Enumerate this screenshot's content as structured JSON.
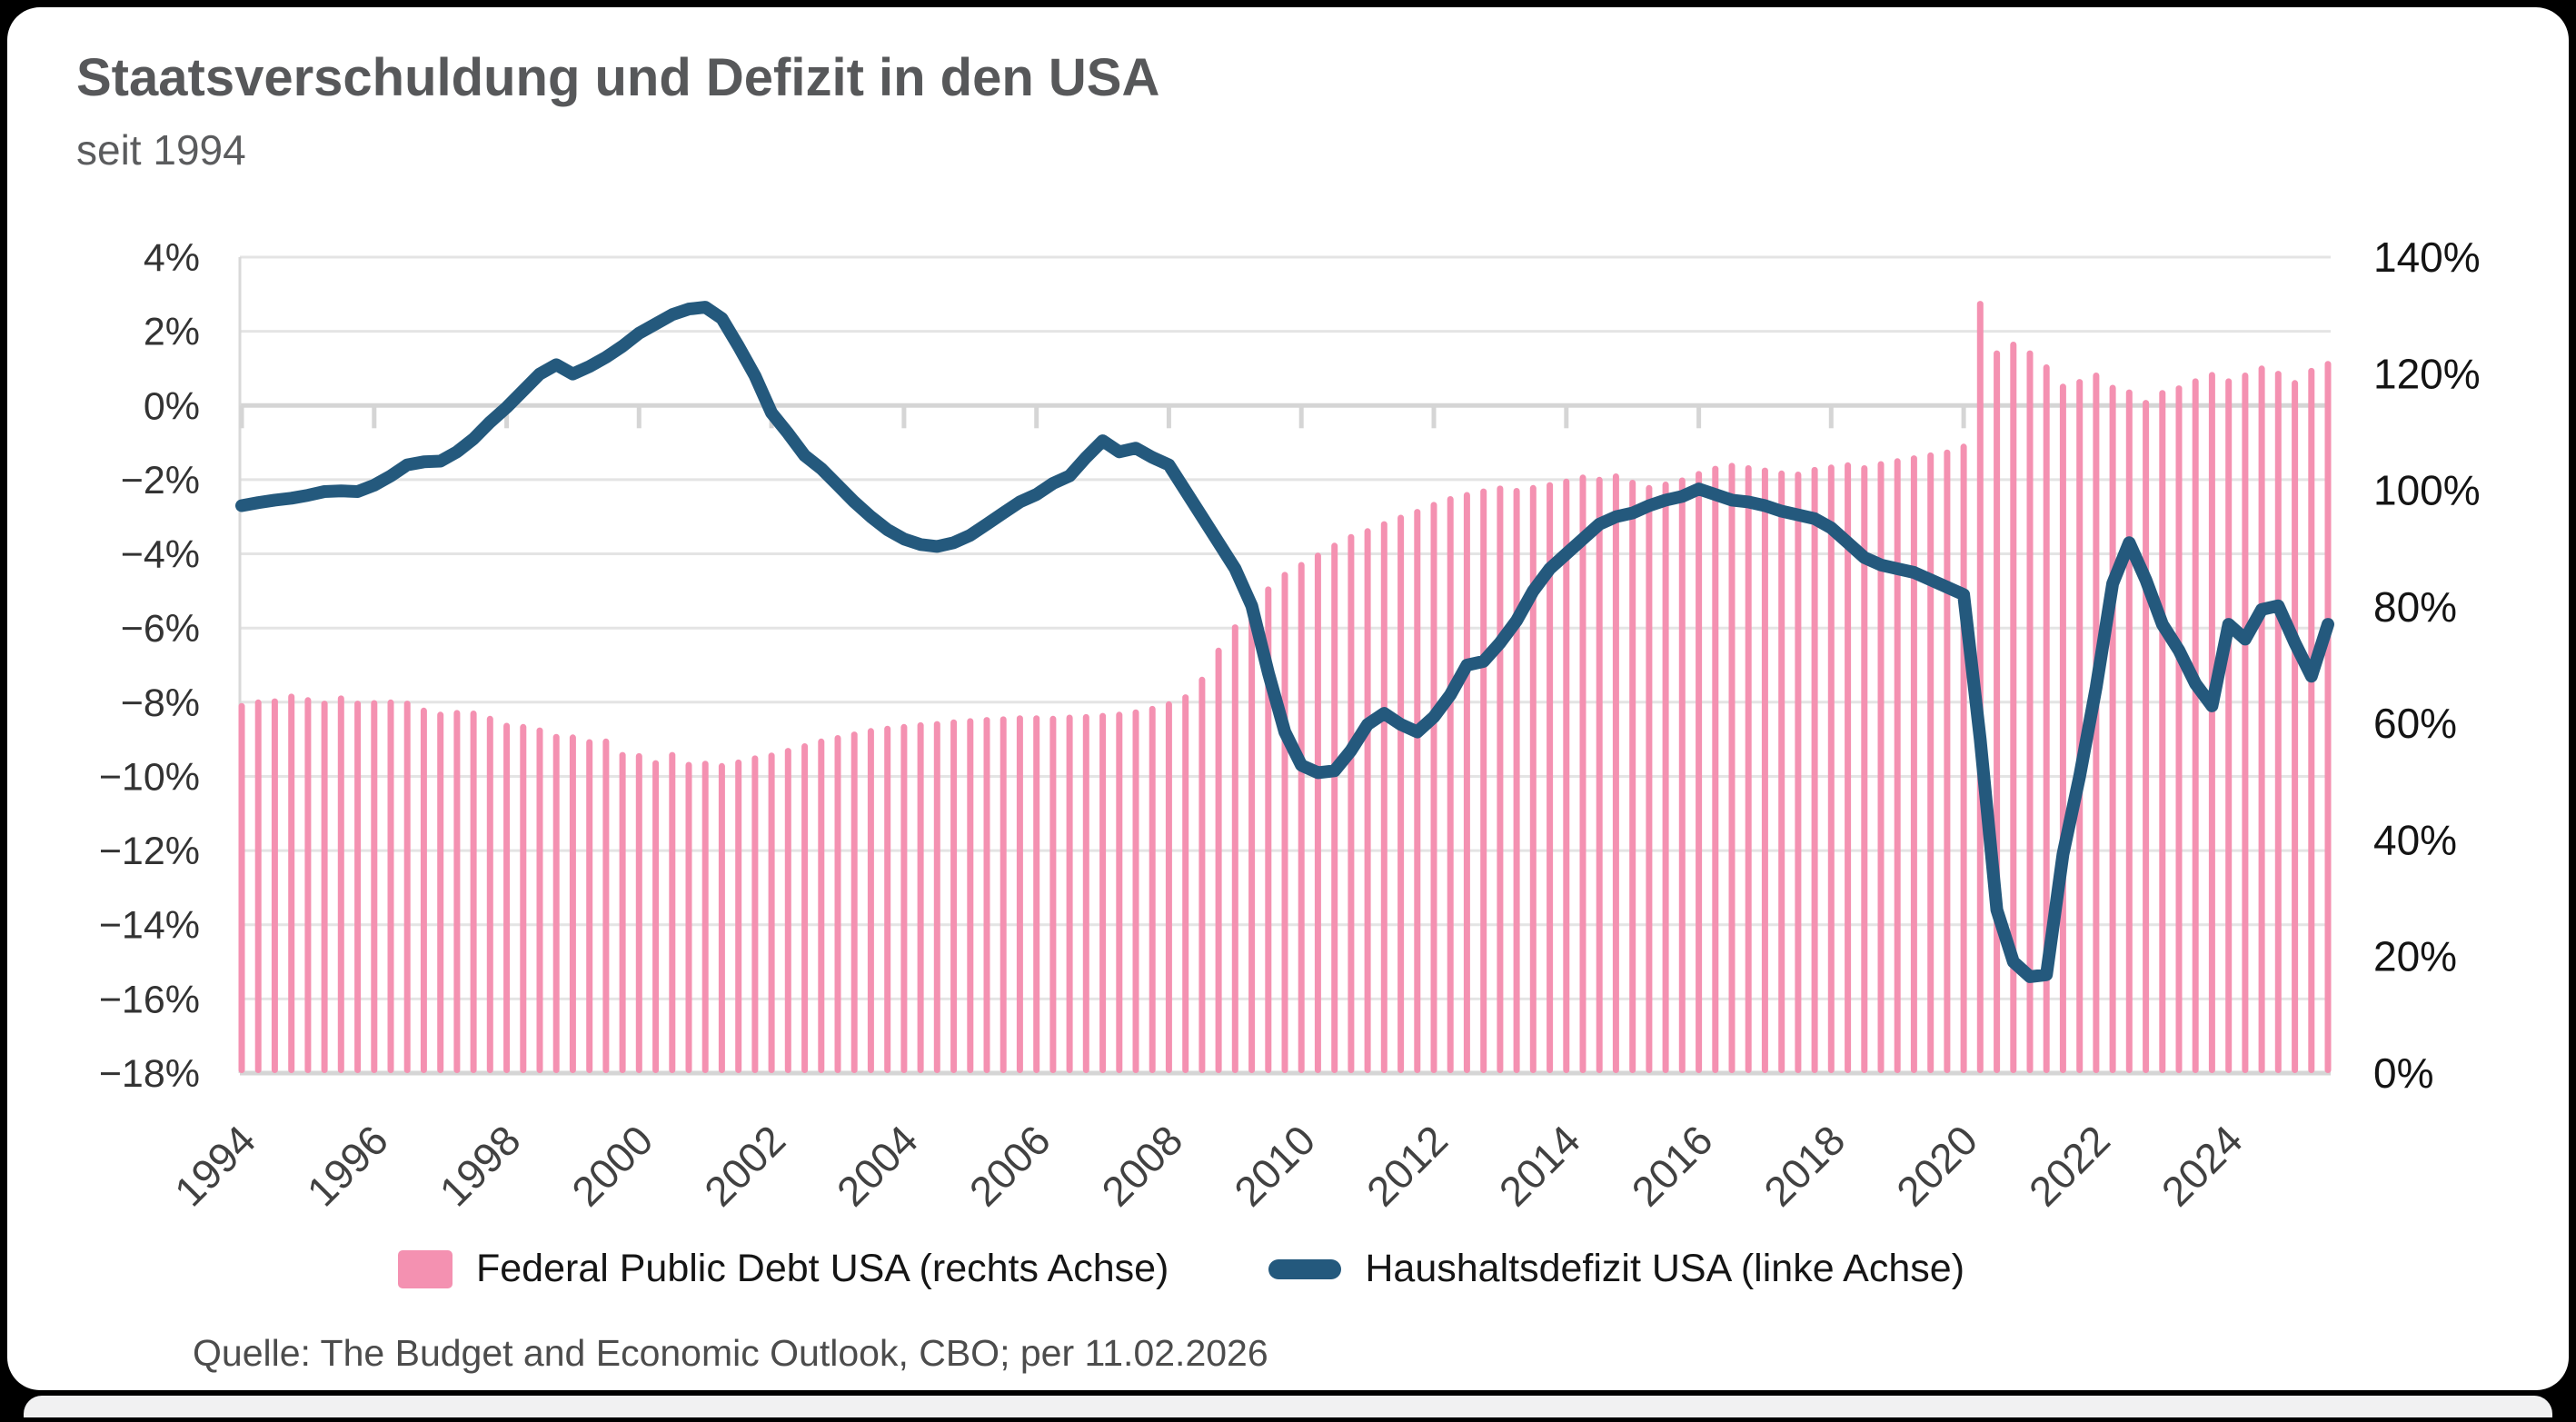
{
  "header": {
    "title": "Staatsverschuldung und Defizit in den USA",
    "subtitle": "seit 1994"
  },
  "legend": {
    "debt_label": "Federal Public Debt USA (rechts Achse)",
    "deficit_label": "Haushaltsdefizit USA (linke Achse)"
  },
  "source_note": "Quelle: The Budget and Economic Outlook, CBO; per 11.02.2026",
  "colors": {
    "bar_pink": "#f491b1",
    "line_blue": "#24597d",
    "grid": "#e4e4e4",
    "grid_strong": "#d5d5d5",
    "axis_text_left": "#333333",
    "axis_text_right": "#141414",
    "x_label": "#414141"
  },
  "chart_data": {
    "type": "combo-bar-line",
    "x_period_start": "1994 Q1",
    "x_period_end": "2025 Q3",
    "x_tick_labels": [
      "1994",
      "1996",
      "1998",
      "2000",
      "2002",
      "2004",
      "2006",
      "2008",
      "2010",
      "2012",
      "2014",
      "2016",
      "2018",
      "2020",
      "2022",
      "2024"
    ],
    "left_axis": {
      "label": "Haushaltsdefizit USA (linke Achse)",
      "ylim": [
        -18,
        4
      ],
      "tick_labels": [
        "4%",
        "2%",
        "0%",
        "−2%",
        "−4%",
        "−6%",
        "−8%",
        "−10%",
        "−12%",
        "−14%",
        "−16%",
        "−18%"
      ]
    },
    "right_axis": {
      "label": "Federal Public Debt USA (rechts Achse)",
      "ylim": [
        0,
        140
      ],
      "tick_labels": [
        "140%",
        "120%",
        "100%",
        "80%",
        "60%",
        "40%",
        "20%",
        "0%"
      ]
    },
    "grid": true,
    "legend_position": "bottom-center",
    "series": [
      {
        "name": "Federal Public Debt USA (rechts Achse)",
        "type": "bar",
        "axis": "right",
        "values": [
          63.5,
          64.1,
          64.3,
          65.1,
          64.5,
          63.9,
          64.8,
          63.9,
          64.0,
          64.1,
          63.9,
          62.7,
          62.0,
          62.3,
          62.2,
          61.3,
          60.1,
          59.9,
          59.3,
          58.2,
          58.1,
          57.3,
          57.4,
          55.1,
          54.9,
          53.7,
          55.1,
          53.4,
          53.6,
          53.2,
          53.8,
          54.5,
          55.0,
          55.8,
          56.6,
          57.4,
          58.0,
          58.6,
          59.2,
          59.6,
          59.9,
          60.2,
          60.4,
          60.7,
          60.9,
          61.1,
          61.2,
          61.4,
          61.4,
          61.3,
          61.5,
          61.6,
          61.8,
          62.0,
          62.4,
          63.0,
          63.8,
          65.0,
          68.0,
          73.0,
          77.0,
          80.5,
          83.5,
          86.0,
          87.7,
          89.3,
          91.0,
          92.5,
          93.5,
          94.7,
          95.8,
          96.8,
          98.0,
          99.0,
          99.7,
          100.3,
          100.8,
          100.4,
          100.9,
          101.4,
          102.0,
          102.7,
          102.3,
          102.9,
          101.8,
          100.9,
          101.5,
          102.2,
          103.3,
          104.2,
          104.7,
          104.3,
          103.9,
          103.4,
          103.2,
          104.0,
          104.4,
          104.8,
          104.3,
          105.0,
          105.5,
          106.0,
          106.5,
          107.0,
          108.0,
          132.5,
          124.0,
          125.5,
          124.0,
          121.6,
          118.3,
          119.1,
          120.2,
          118.1,
          117.3,
          115.5,
          117.2,
          118.0,
          119.2,
          120.3,
          119.2,
          120.2,
          121.4,
          120.5,
          118.9,
          121.0,
          122.2
        ]
      },
      {
        "name": "Haushaltsdefizit USA (linke Achse)",
        "type": "line",
        "axis": "left",
        "values": [
          -2.7,
          -2.62,
          -2.55,
          -2.5,
          -2.42,
          -2.32,
          -2.3,
          -2.32,
          -2.15,
          -1.9,
          -1.6,
          -1.52,
          -1.5,
          -1.25,
          -0.9,
          -0.45,
          -0.05,
          0.4,
          0.85,
          1.1,
          0.85,
          1.05,
          1.3,
          1.6,
          1.95,
          2.2,
          2.45,
          2.6,
          2.65,
          2.35,
          1.6,
          0.8,
          -0.2,
          -0.75,
          -1.35,
          -1.7,
          -2.15,
          -2.6,
          -3.0,
          -3.35,
          -3.6,
          -3.75,
          -3.8,
          -3.7,
          -3.5,
          -3.2,
          -2.9,
          -2.6,
          -2.4,
          -2.1,
          -1.9,
          -1.4,
          -0.95,
          -1.25,
          -1.15,
          -1.4,
          -1.6,
          -2.3,
          -3.0,
          -3.7,
          -4.4,
          -5.4,
          -7.2,
          -8.8,
          -9.7,
          -9.9,
          -9.85,
          -9.3,
          -8.6,
          -8.3,
          -8.6,
          -8.8,
          -8.4,
          -7.8,
          -7.0,
          -6.9,
          -6.4,
          -5.8,
          -5.0,
          -4.4,
          -4.0,
          -3.6,
          -3.2,
          -3.0,
          -2.9,
          -2.7,
          -2.55,
          -2.45,
          -2.25,
          -2.4,
          -2.55,
          -2.6,
          -2.7,
          -2.85,
          -2.95,
          -3.05,
          -3.3,
          -3.7,
          -4.1,
          -4.3,
          -4.4,
          -4.5,
          -4.7,
          -4.9,
          -5.1,
          -9.0,
          -13.6,
          -15.0,
          -15.4,
          -15.35,
          -12.1,
          -10.0,
          -7.6,
          -4.8,
          -3.7,
          -4.7,
          -5.9,
          -6.6,
          -7.5,
          -8.1,
          -5.9,
          -6.3,
          -5.5,
          -5.4,
          -6.4,
          -7.3,
          -5.9
        ]
      }
    ]
  }
}
